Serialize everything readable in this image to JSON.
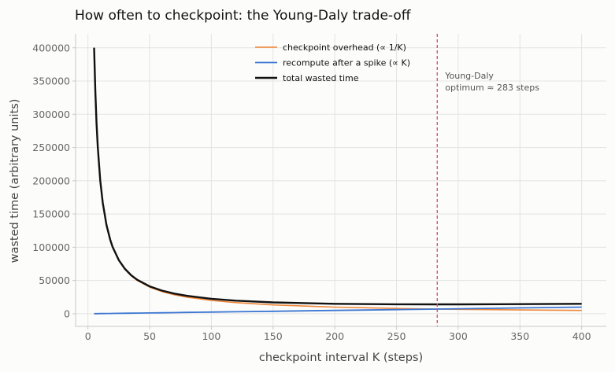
{
  "chart_data": {
    "type": "line",
    "title": "How often to checkpoint: the Young-Daly trade-off",
    "xlabel": "checkpoint interval K (steps)",
    "ylabel": "wasted time (arbitrary units)",
    "xlim": [
      -10,
      420
    ],
    "ylim": [
      -19000,
      421000
    ],
    "xticks": [
      0,
      50,
      100,
      150,
      200,
      250,
      300,
      350,
      400
    ],
    "yticks": [
      0,
      50000,
      100000,
      150000,
      200000,
      250000,
      300000,
      350000,
      400000
    ],
    "grid": true,
    "legend_position": "top-center",
    "x": [
      5,
      6,
      7,
      8,
      10,
      12,
      15,
      18,
      20,
      25,
      30,
      35,
      40,
      50,
      60,
      70,
      80,
      100,
      120,
      150,
      200,
      250,
      283,
      300,
      350,
      400
    ],
    "series": [
      {
        "name": "checkpoint overhead (∝ 1/K)",
        "color": "#ef8636",
        "values": [
          400000,
          333333,
          285714,
          250000,
          200000,
          166667,
          133333,
          111111,
          100000,
          80000,
          66667,
          57143,
          50000,
          40000,
          33333,
          28571,
          25000,
          20000,
          16667,
          13333,
          10000,
          8000,
          7067,
          6667,
          5714,
          5000
        ]
      },
      {
        "name": "recompute after a spike (∝ K)",
        "color": "#3b76d2",
        "values": [
          125,
          150,
          175,
          200,
          250,
          300,
          375,
          450,
          500,
          625,
          750,
          875,
          1000,
          1250,
          1500,
          1750,
          2000,
          2500,
          3000,
          3750,
          5000,
          6250,
          7075,
          7500,
          8750,
          10000
        ]
      },
      {
        "name": "total wasted time",
        "color": "#111111",
        "values": [
          400125,
          333483,
          285889,
          250200,
          200250,
          166967,
          133708,
          111561,
          100500,
          80625,
          67417,
          58018,
          51000,
          41250,
          34833,
          30321,
          27000,
          22500,
          19667,
          17083,
          15000,
          14250,
          14142,
          14167,
          14464,
          15000
        ]
      }
    ],
    "optimum": {
      "x": 283,
      "color": "#d9485f",
      "label_line1": "Young-Daly",
      "label_line2": "optimum ≈ 283 steps"
    }
  }
}
